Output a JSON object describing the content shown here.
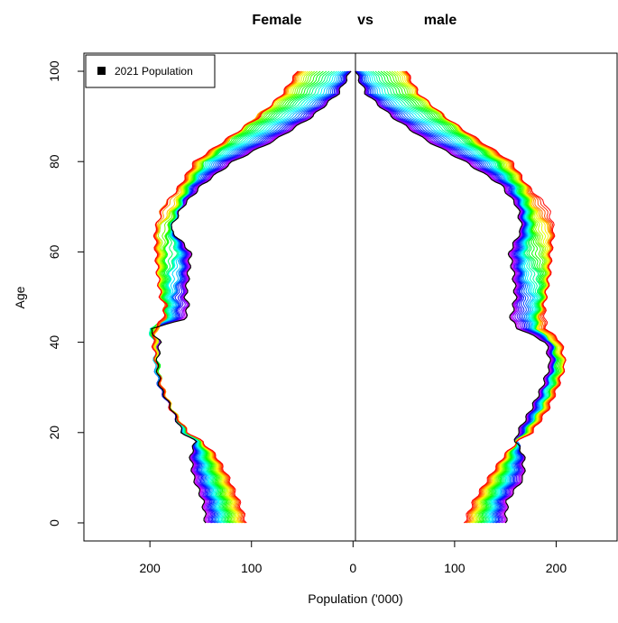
{
  "chart_data": {
    "type": "line",
    "title_parts": [
      "Female",
      "vs",
      "male"
    ],
    "xlabel": "Population ('000)",
    "ylabel": "Age",
    "x_ticks": [
      {
        "value": -200,
        "label": "200"
      },
      {
        "value": -100,
        "label": "100"
      },
      {
        "value": 0,
        "label": "0"
      },
      {
        "value": 100,
        "label": "100"
      },
      {
        "value": 200,
        "label": "200"
      }
    ],
    "y_ticks": [
      0,
      20,
      40,
      60,
      80,
      100
    ],
    "xlim": [
      -265,
      260
    ],
    "ylim": [
      -4,
      104
    ],
    "legend": {
      "label": "2021 Population",
      "position": "top-left"
    },
    "highlight_color": "#000000",
    "series_colors": "rainbow: red to magenta, one colour per projected year",
    "series_count": 32,
    "base_series": {
      "name": "2021 Population",
      "ages": [
        0,
        5,
        10,
        15,
        18,
        20,
        25,
        30,
        35,
        40,
        43,
        45,
        48,
        50,
        55,
        60,
        65,
        70,
        75,
        80,
        85,
        90,
        95,
        100
      ],
      "female": [
        145,
        148,
        157,
        160,
        155,
        168,
        178,
        190,
        193,
        190,
        200,
        166,
        162,
        165,
        162,
        160,
        180,
        168,
        148,
        118,
        75,
        40,
        15,
        2
      ],
      "male": [
        150,
        152,
        168,
        168,
        160,
        162,
        175,
        186,
        194,
        190,
        163,
        155,
        158,
        160,
        158,
        154,
        166,
        162,
        145,
        110,
        70,
        38,
        13,
        2
      ]
    },
    "final_series": {
      "female": [
        75,
        88,
        103,
        125,
        150,
        172,
        200,
        213,
        220,
        222,
        215,
        210,
        205,
        208,
        208,
        205,
        200,
        188,
        177,
        160,
        115,
        65,
        20,
        2
      ],
      "male": [
        78,
        95,
        117,
        145,
        170,
        195,
        220,
        235,
        245,
        230,
        210,
        210,
        212,
        213,
        213,
        210,
        208,
        200,
        186,
        165,
        115,
        65,
        20,
        2
      ]
    }
  }
}
